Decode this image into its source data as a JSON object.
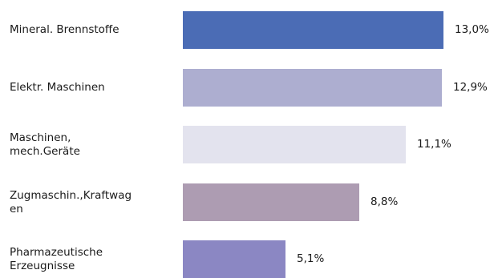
{
  "chart_data": {
    "type": "bar",
    "orientation": "horizontal",
    "categories": [
      [
        "Mineral. Brennstoffe"
      ],
      [
        "Elektr. Maschinen"
      ],
      [
        "Maschinen,",
        "mech.Geräte"
      ],
      [
        "Zugmaschin.,Kraftwag",
        "en"
      ],
      [
        "Pharmazeutische",
        "Erzeugnisse"
      ]
    ],
    "values": [
      13.0,
      12.9,
      11.1,
      8.8,
      5.1
    ],
    "value_labels": [
      "13,0%",
      "12,9%",
      "11,1%",
      "8,8%",
      "5,1%"
    ],
    "colors": [
      "#4b6cb5",
      "#adaed0",
      "#e3e3ee",
      "#ad9cb2",
      "#8b87c3"
    ],
    "xlim": [
      0,
      13.0
    ],
    "grid": false,
    "legend": "none"
  }
}
